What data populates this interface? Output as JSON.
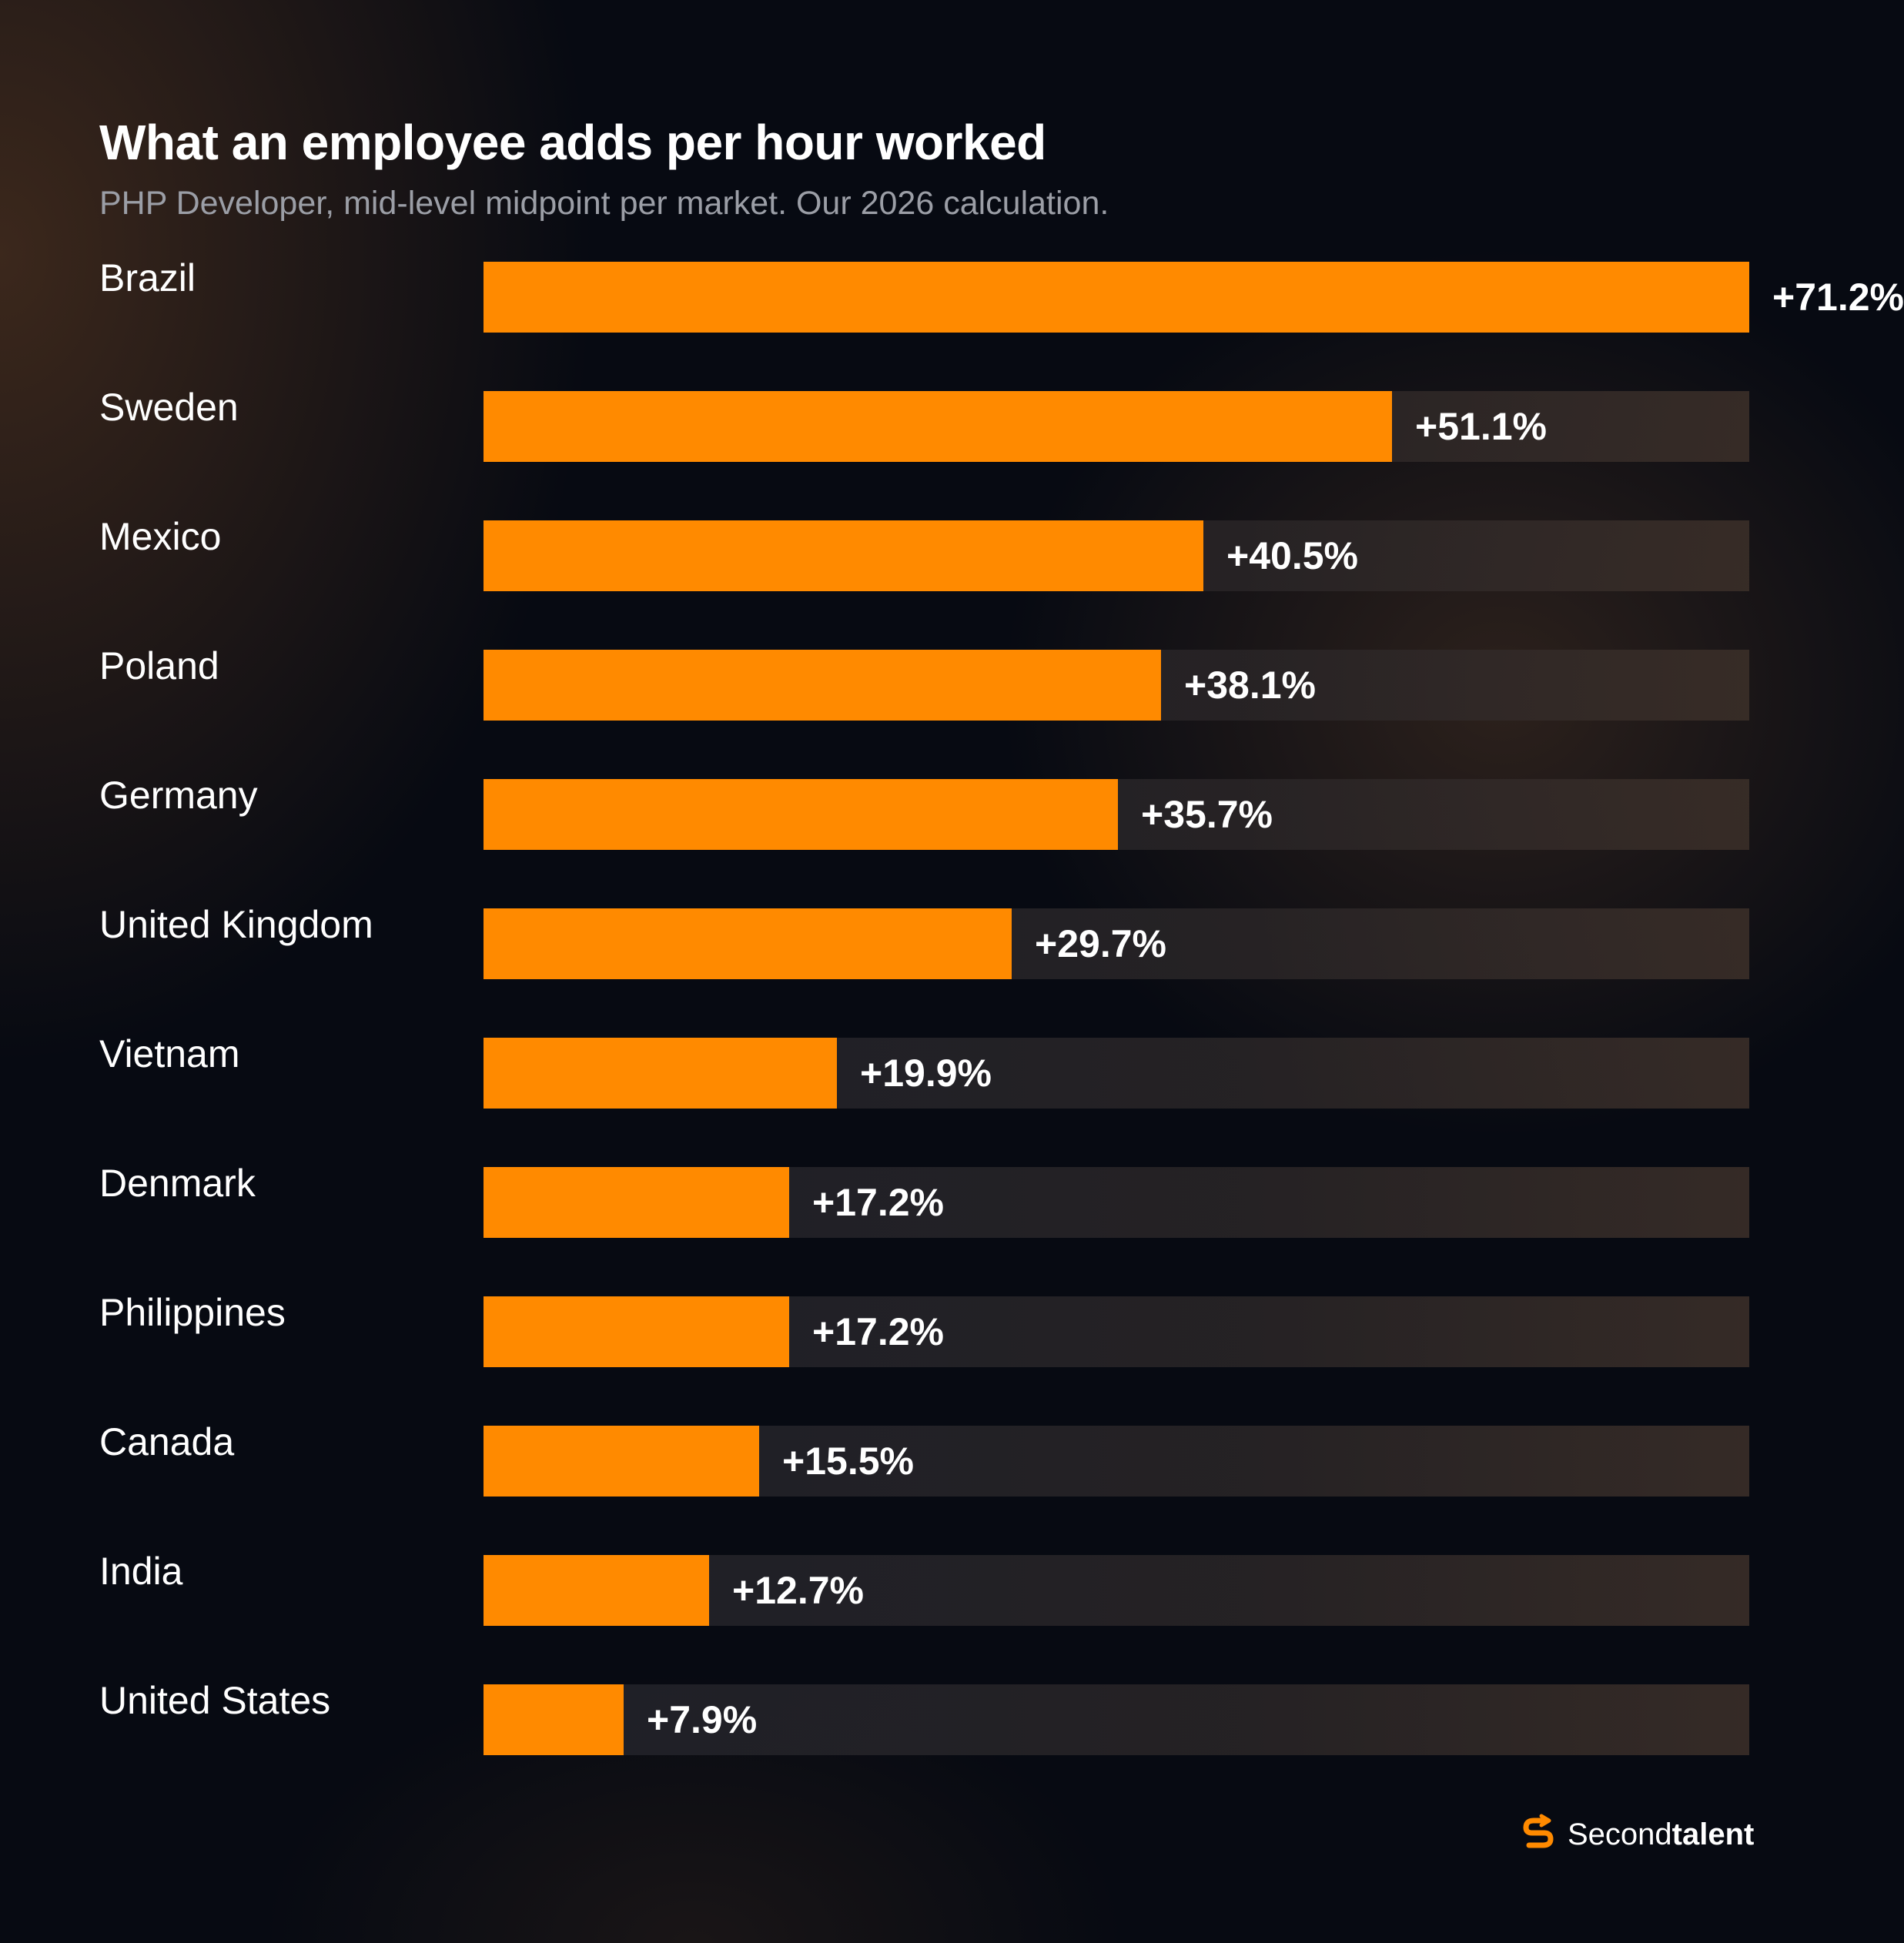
{
  "colors": {
    "bar": "#ff8a00",
    "background": "#070a12",
    "track": "#20222a",
    "value_inside": "#0c0d12",
    "value_outside": "#ffffff"
  },
  "brand": {
    "logo_icon": "secondtalent-s-logo-icon",
    "name_regular": "Second",
    "name_bold": "talent"
  },
  "chart_data": {
    "type": "bar",
    "orientation": "horizontal",
    "title": "What an employee adds per hour worked",
    "subtitle": "PHP Developer, mid-level midpoint per market. Our 2026 calculation.",
    "xlim": [
      0,
      71.2
    ],
    "grid": false,
    "categories": [
      "Brazil",
      "Sweden",
      "Mexico",
      "Poland",
      "Germany",
      "United Kingdom",
      "Vietnam",
      "Denmark",
      "Philippines",
      "Canada",
      "India",
      "United States"
    ],
    "values": [
      71.2,
      51.1,
      40.5,
      38.1,
      35.7,
      29.7,
      19.9,
      17.2,
      17.2,
      15.5,
      12.7,
      7.9
    ],
    "labels": [
      "+71.2%",
      "+51.1%",
      "+40.5%",
      "+38.1%",
      "+35.7%",
      "+29.7%",
      "+19.9%",
      "+17.2%",
      "+17.2%",
      "+15.5%",
      "+12.7%",
      "+7.9%"
    ]
  }
}
